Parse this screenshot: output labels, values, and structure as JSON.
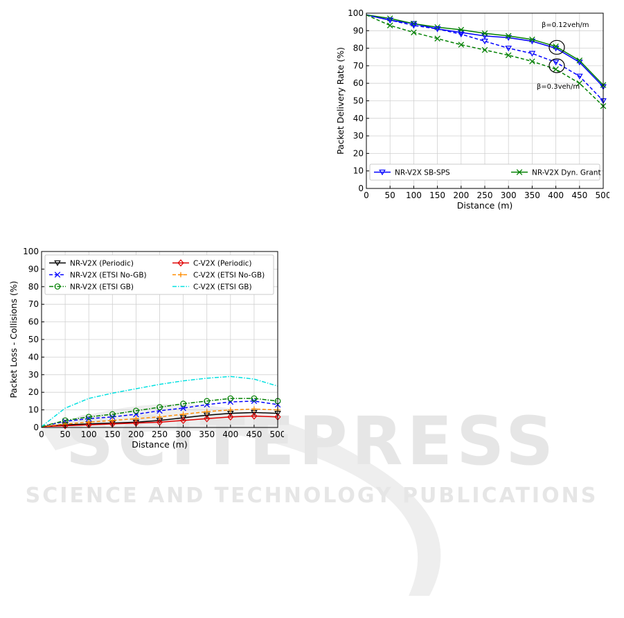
{
  "watermark": {
    "line1": "SCITEPRESS",
    "line2": "SCIENCE AND TECHNOLOGY PUBLICATIONS"
  },
  "chart_data": [
    {
      "type": "line",
      "xlabel": "Distance (m)",
      "ylabel": "Packet Delivery Rate (%)",
      "xlim": [
        0,
        500
      ],
      "ylim": [
        0,
        100
      ],
      "xticks": [
        0,
        50,
        100,
        150,
        200,
        250,
        300,
        350,
        400,
        450,
        500
      ],
      "yticks": [
        0,
        10,
        20,
        30,
        40,
        50,
        60,
        70,
        80,
        90,
        100
      ],
      "grid": true,
      "legend_position": "bottom",
      "x": [
        0,
        50,
        100,
        150,
        200,
        250,
        300,
        350,
        400,
        450,
        500
      ],
      "series": [
        {
          "name": "NR-V2X SB-SPS",
          "color": "#0000ff",
          "marker": "triangle-down",
          "style": "solid",
          "values": [
            99,
            96,
            94,
            91,
            89,
            87,
            86,
            84,
            80,
            72,
            58
          ]
        },
        {
          "name": "NR-V2X Dyn. Grant",
          "color": "#008000",
          "marker": "x",
          "style": "solid",
          "values": [
            99,
            97,
            94,
            92,
            90.5,
            88.5,
            87,
            85,
            81,
            73,
            59
          ]
        },
        {
          "name": "",
          "color": "#0000ff",
          "marker": "triangle-down",
          "style": "dashed",
          "values": [
            99,
            96,
            93,
            91,
            88,
            84,
            80,
            77,
            72,
            64,
            50
          ]
        },
        {
          "name": "",
          "color": "#008000",
          "marker": "x",
          "style": "dashed",
          "values": [
            99,
            93,
            89,
            85.5,
            82,
            79,
            76,
            72.5,
            68,
            60,
            47
          ]
        }
      ],
      "annotations": [
        {
          "text": "β=0.12veh/m",
          "x": 420,
          "y": 92
        },
        {
          "text": "β=0.3veh/m",
          "x": 405,
          "y": 57
        }
      ],
      "circles": [
        {
          "x": 402,
          "y": 80.5
        },
        {
          "x": 402,
          "y": 70
        }
      ]
    },
    {
      "type": "line",
      "xlabel": "Distance (m)",
      "ylabel": "Packet Loss - Collisions (%)",
      "xlim": [
        0,
        500
      ],
      "ylim": [
        0,
        100
      ],
      "xticks": [
        0,
        50,
        100,
        150,
        200,
        250,
        300,
        350,
        400,
        450,
        500
      ],
      "yticks": [
        0,
        10,
        20,
        30,
        40,
        50,
        60,
        70,
        80,
        90,
        100
      ],
      "grid": true,
      "legend_position": "top",
      "x": [
        0,
        50,
        100,
        150,
        200,
        250,
        300,
        350,
        400,
        450,
        500
      ],
      "series": [
        {
          "name": "NR-V2X (Periodic)",
          "color": "#000000",
          "marker": "triangle-down",
          "style": "solid",
          "values": [
            0.5,
            1.5,
            2,
            2.5,
            3,
            4,
            5.5,
            7,
            8,
            8.5,
            8
          ]
        },
        {
          "name": "C-V2X (Periodic)",
          "color": "#e00000",
          "marker": "diamond",
          "style": "solid",
          "values": [
            0.5,
            1,
            1.5,
            2,
            2.5,
            3,
            4,
            5,
            6,
            6.5,
            6
          ]
        },
        {
          "name": "NR-V2X (ETSI No-GB)",
          "color": "#0000ff",
          "marker": "x",
          "style": "dashed",
          "values": [
            0.5,
            3.5,
            5,
            6,
            7.5,
            9.5,
            11,
            13,
            14.5,
            15,
            13
          ]
        },
        {
          "name": "C-V2X (ETSI No-GB)",
          "color": "#ff8c00",
          "marker": "plus",
          "style": "dashed",
          "values": [
            0.5,
            2,
            3,
            4,
            5,
            6,
            7.5,
            9,
            10,
            10.5,
            10
          ]
        },
        {
          "name": "NR-V2X (ETSI GB)",
          "color": "#008000",
          "marker": "circle",
          "style": "dashdot",
          "values": [
            0.5,
            4,
            6,
            7.5,
            9.5,
            11.5,
            13.5,
            15,
            16.5,
            16.5,
            15
          ]
        },
        {
          "name": "C-V2X (ETSI GB)",
          "color": "#00e0e0",
          "marker": "none",
          "style": "dashdot",
          "values": [
            0.5,
            11,
            16.5,
            19.5,
            22,
            24.5,
            26.5,
            28,
            29,
            27.5,
            23.5
          ]
        }
      ]
    }
  ]
}
